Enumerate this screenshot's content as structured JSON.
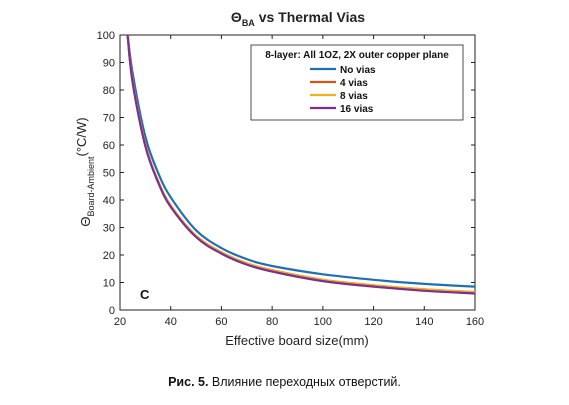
{
  "chart_data": {
    "type": "line",
    "title_main": "Θ",
    "title_sub": "BA",
    "title_rest": " vs Thermal Vias",
    "xlabel": "Effective board size(mm)",
    "ylabel_main": "Θ",
    "ylabel_sub": "Board-Ambient",
    "ylabel_unit": "(°C/W)",
    "xlim": [
      20,
      160
    ],
    "ylim": [
      0,
      100
    ],
    "xticks": [
      20,
      40,
      60,
      80,
      100,
      120,
      140,
      160
    ],
    "yticks": [
      0,
      10,
      20,
      30,
      40,
      50,
      60,
      70,
      80,
      90,
      100
    ],
    "grid": false,
    "legend_position": "top-right",
    "legend_title": "8-layer: All 1OZ, 2X outer copper plane",
    "panel_label": "C",
    "x": [
      23,
      25,
      30,
      35,
      40,
      50,
      60,
      70,
      80,
      100,
      120,
      140,
      160
    ],
    "series": [
      {
        "name": "No vias",
        "color": "#1f6fb5",
        "values": [
          100,
          86,
          63,
          50,
          41,
          29,
          22.5,
          18.5,
          16,
          13,
          11,
          9.5,
          8.5
        ]
      },
      {
        "name": "4 vias",
        "color": "#d95319",
        "values": [
          100,
          83,
          60,
          47,
          38,
          27,
          21,
          17,
          14.5,
          11,
          9,
          7.5,
          6.5
        ]
      },
      {
        "name": "8 vias",
        "color": "#edb120",
        "values": [
          100,
          83,
          60,
          47,
          38,
          27,
          21,
          17,
          14.5,
          11,
          9,
          7.5,
          6.5
        ]
      },
      {
        "name": "16 vias",
        "color": "#7e2f8e",
        "values": [
          100,
          82.5,
          59.5,
          46.5,
          37.5,
          26.5,
          20.5,
          16.5,
          14,
          10.5,
          8.5,
          7,
          6
        ]
      }
    ]
  },
  "caption": {
    "label": "Рис. 5.",
    "text": " Влияние переходных отверстий."
  }
}
